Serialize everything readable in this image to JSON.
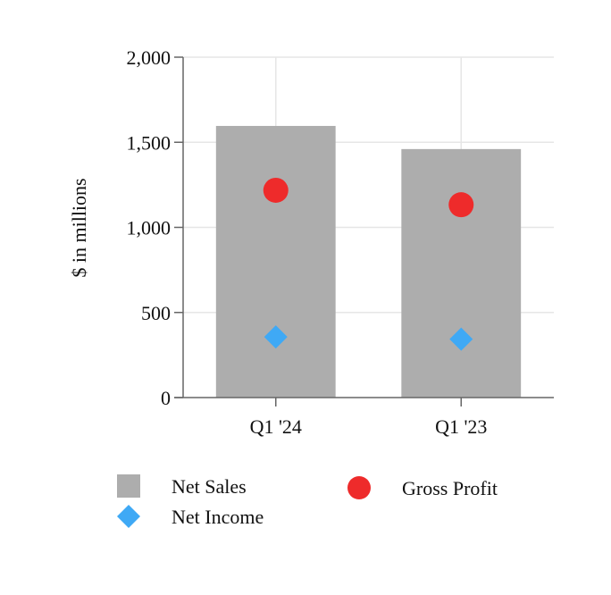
{
  "chart_data": {
    "type": "bar",
    "categories": [
      "Q1 '24",
      "Q1 '23"
    ],
    "series": [
      {
        "name": "Net Sales",
        "kind": "bar",
        "marker": "square",
        "color": "#adadad",
        "values": [
          1596,
          1460
        ]
      },
      {
        "name": "Gross Profit",
        "kind": "point",
        "marker": "circle",
        "color": "#ee2b2b",
        "values": [
          1218,
          1133
        ]
      },
      {
        "name": "Net Income",
        "kind": "point",
        "marker": "diamond",
        "color": "#3fa9f5",
        "values": [
          356,
          343
        ]
      }
    ],
    "title": "",
    "xlabel": "",
    "ylabel": "$ in millions",
    "ylim": [
      0,
      2000
    ],
    "yticks": [
      0,
      500,
      1000,
      1500,
      2000
    ],
    "ytick_labels": [
      "0",
      "500",
      "1,000",
      "1,500",
      "2,000"
    ],
    "grid": true,
    "legend_position": "bottom"
  }
}
